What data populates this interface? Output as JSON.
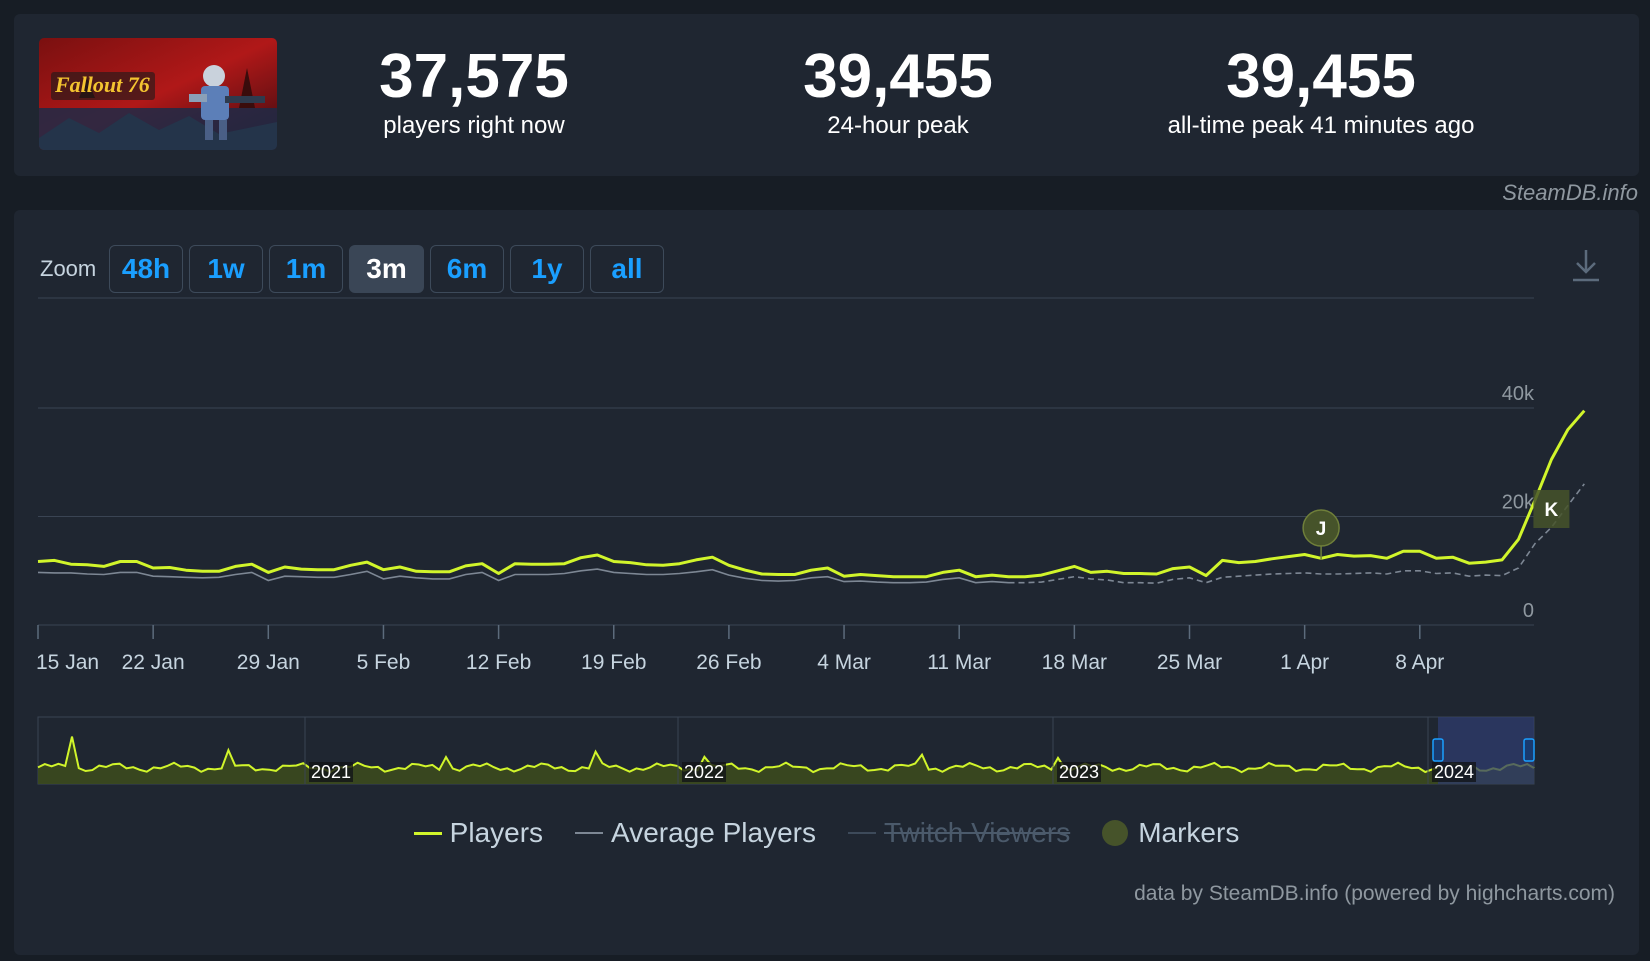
{
  "stats": [
    {
      "value": "37,575",
      "label": "players right now"
    },
    {
      "value": "39,455",
      "label": "24-hour peak"
    },
    {
      "value": "39,455",
      "label": "all-time peak 41 minutes ago"
    }
  ],
  "game_logo_text": "Fallout 76",
  "credit_top": "SteamDB.info",
  "zoom": {
    "label": "Zoom",
    "buttons": [
      "48h",
      "1w",
      "1m",
      "3m",
      "6m",
      "1y",
      "all"
    ],
    "active": "3m"
  },
  "legend": {
    "players": "Players",
    "average": "Average Players",
    "twitch": "Twitch Viewers",
    "markers": "Markers"
  },
  "credit_bottom": "data by SteamDB.info (powered by highcharts.com)",
  "colors": {
    "players": "#d1f52b",
    "average": "#7d8794",
    "marker": "#46532a",
    "accent": "#1a9fff"
  },
  "chart_data": {
    "type": "line",
    "x_ticks": [
      "15 Jan",
      "22 Jan",
      "29 Jan",
      "5 Feb",
      "12 Feb",
      "19 Feb",
      "26 Feb",
      "4 Mar",
      "11 Mar",
      "18 Mar",
      "25 Mar",
      "1 Apr",
      "8 Apr"
    ],
    "y_ticks": [
      "0",
      "20k",
      "40k"
    ],
    "ylim": [
      0,
      40000
    ],
    "x_days": [
      0,
      1,
      2,
      3,
      4,
      5,
      6,
      7,
      8,
      9,
      10,
      11,
      12,
      13,
      14,
      15,
      16,
      17,
      18,
      19,
      20,
      21,
      22,
      23,
      24,
      25,
      26,
      27,
      28,
      29,
      30,
      31,
      32,
      33,
      34,
      35,
      36,
      37,
      38,
      39,
      40,
      41,
      42,
      43,
      44,
      45,
      46,
      47,
      48,
      49,
      50,
      51,
      52,
      53,
      54,
      55,
      56,
      57,
      58,
      59,
      60,
      61,
      62,
      63,
      64,
      65,
      66,
      67,
      68,
      69,
      70,
      71,
      72,
      73,
      74,
      75,
      76,
      77,
      78,
      79,
      80,
      81,
      82,
      83,
      84,
      85,
      86,
      87,
      88,
      89,
      90,
      91,
      92,
      93,
      94
    ],
    "series": [
      {
        "name": "Players",
        "values": [
          11700,
          11900,
          11200,
          11100,
          10800,
          11700,
          11700,
          10500,
          10600,
          10100,
          9900,
          9900,
          10800,
          11200,
          9700,
          10700,
          10300,
          10200,
          10200,
          11000,
          11600,
          10200,
          10700,
          9900,
          9800,
          9800,
          10900,
          11300,
          9500,
          11300,
          11200,
          11200,
          11300,
          12400,
          12900,
          11700,
          11500,
          11100,
          11000,
          11300,
          12000,
          12500,
          11000,
          10100,
          9400,
          9300,
          9300,
          10100,
          10500,
          9000,
          9300,
          9100,
          8900,
          8900,
          8900,
          9700,
          10100,
          8900,
          9200,
          8900,
          8900,
          9200,
          10000,
          10800,
          9700,
          9900,
          9500,
          9500,
          9400,
          10400,
          10700,
          9100,
          11900,
          11500,
          11700,
          12200,
          12600,
          13000,
          12300,
          13000,
          12700,
          12800,
          12300,
          13600,
          13600,
          12300,
          12500,
          11400,
          11600,
          12000,
          15800,
          23000,
          30500,
          36000,
          39500
        ]
      },
      {
        "name": "Average Players",
        "values": [
          9700,
          9600,
          9600,
          9400,
          9300,
          9700,
          9700,
          9000,
          8900,
          8800,
          8700,
          8800,
          9300,
          9700,
          8200,
          9000,
          8900,
          8800,
          8800,
          9300,
          9900,
          8500,
          9000,
          8700,
          8500,
          8500,
          9300,
          9700,
          8200,
          9300,
          9300,
          9300,
          9500,
          10000,
          10300,
          9700,
          9500,
          9300,
          9300,
          9500,
          9800,
          10200,
          9200,
          8600,
          8200,
          8100,
          8200,
          8700,
          8900,
          8000,
          8100,
          7900,
          7800,
          7800,
          7900,
          8400,
          8700,
          7800,
          8000,
          7800,
          7800,
          7900,
          8400,
          8900,
          8500,
          8300,
          7800,
          7800,
          7700,
          8400,
          8700,
          7800,
          8800,
          9000,
          9200,
          9400,
          9500,
          9600,
          9400,
          9400,
          9500,
          9600,
          9400,
          10000,
          10000,
          9500,
          9600,
          9000,
          9200,
          9100,
          10500,
          15000,
          18000,
          22000,
          26000
        ]
      }
    ],
    "markers": [
      {
        "label": "J",
        "x_day": 78
      },
      {
        "label": "K",
        "x_day": 92
      }
    ],
    "navigator": {
      "labels": [
        "2021",
        "2022",
        "2023",
        "2024"
      ]
    }
  }
}
